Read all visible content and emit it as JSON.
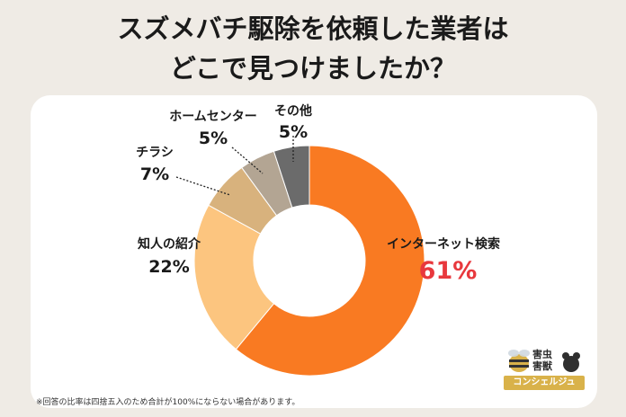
{
  "title_line1": "スズメバチ駆除を依頼した業者は",
  "title_line2": "どこで見つけましたか？",
  "note": "※回答の比率は四捨五入のため合計が100%にならない場合があります。",
  "logo": {
    "line1": "害虫",
    "line2": "害獣",
    "bar": "コンシェルジュ"
  },
  "chart_data": {
    "type": "pie",
    "donut": true,
    "title": "スズメバチ駆除を依頼した業者はどこで見つけましたか？",
    "slices": [
      {
        "label": "インターネット検索",
        "value": 61,
        "value_label": "61%",
        "color": "#f97a22"
      },
      {
        "label": "知人の紹介",
        "value": 22,
        "value_label": "22%",
        "color": "#fcc57f"
      },
      {
        "label": "チラシ",
        "value": 7,
        "value_label": "7%",
        "color": "#d8b27d"
      },
      {
        "label": "ホームセンター",
        "value": 5,
        "value_label": "5%",
        "color": "#b3a593"
      },
      {
        "label": "その他",
        "value": 5,
        "value_label": "5%",
        "color": "#6b6b6b"
      }
    ],
    "highlight_color": "#e8383d"
  }
}
